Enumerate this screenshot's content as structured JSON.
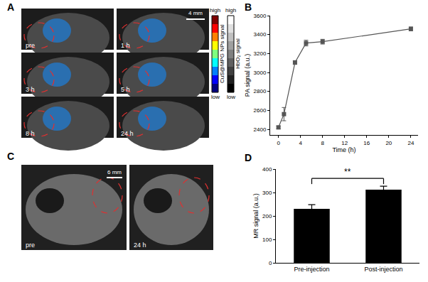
{
  "chart_data": [
    {
      "type": "line",
      "title": "B",
      "x_label": "Time (h)",
      "y_label": "PA signal (a.u.)",
      "x": [
        0,
        1,
        3,
        5,
        8,
        24
      ],
      "values": [
        2420,
        2560,
        3105,
        3310,
        3325,
        3460
      ],
      "error": [
        15,
        70,
        20,
        30,
        25,
        20
      ],
      "xlim": [
        -1.5,
        25.3
      ],
      "xticks": [
        0,
        4,
        8,
        12,
        16,
        20,
        24
      ],
      "ylim": [
        2340,
        3600
      ],
      "yticks": [
        2400,
        2600,
        2800,
        3000,
        3200,
        3400,
        3600
      ],
      "color": "#555555",
      "marker": "square",
      "grid": false
    },
    {
      "type": "bar",
      "title": "D",
      "y_label": "MR signal (a.u.)",
      "categories": [
        "Pre-injection",
        "Post-injection"
      ],
      "values": [
        230,
        312
      ],
      "error": [
        18,
        15
      ],
      "ylim": [
        0,
        400
      ],
      "yticks": [
        0,
        100,
        200,
        300,
        400
      ],
      "color": "#000000",
      "grid": false,
      "annotations": [
        "**"
      ]
    }
  ],
  "image_panels": [
    {
      "label": "A",
      "frames": [
        "pre",
        "1 h",
        "3 h",
        "5 h",
        "8 h",
        "24 h"
      ],
      "scale_bar": "4 mm",
      "colorbars": [
        {
          "title": "CuS@MPG NPs signal",
          "high": "high",
          "low": "low"
        },
        {
          "title": "HbO₂ signal",
          "high": "high",
          "low": "low"
        }
      ]
    },
    {
      "label": "C",
      "frames": [
        "pre",
        "24 h"
      ],
      "scale_bar": "6 mm"
    }
  ]
}
